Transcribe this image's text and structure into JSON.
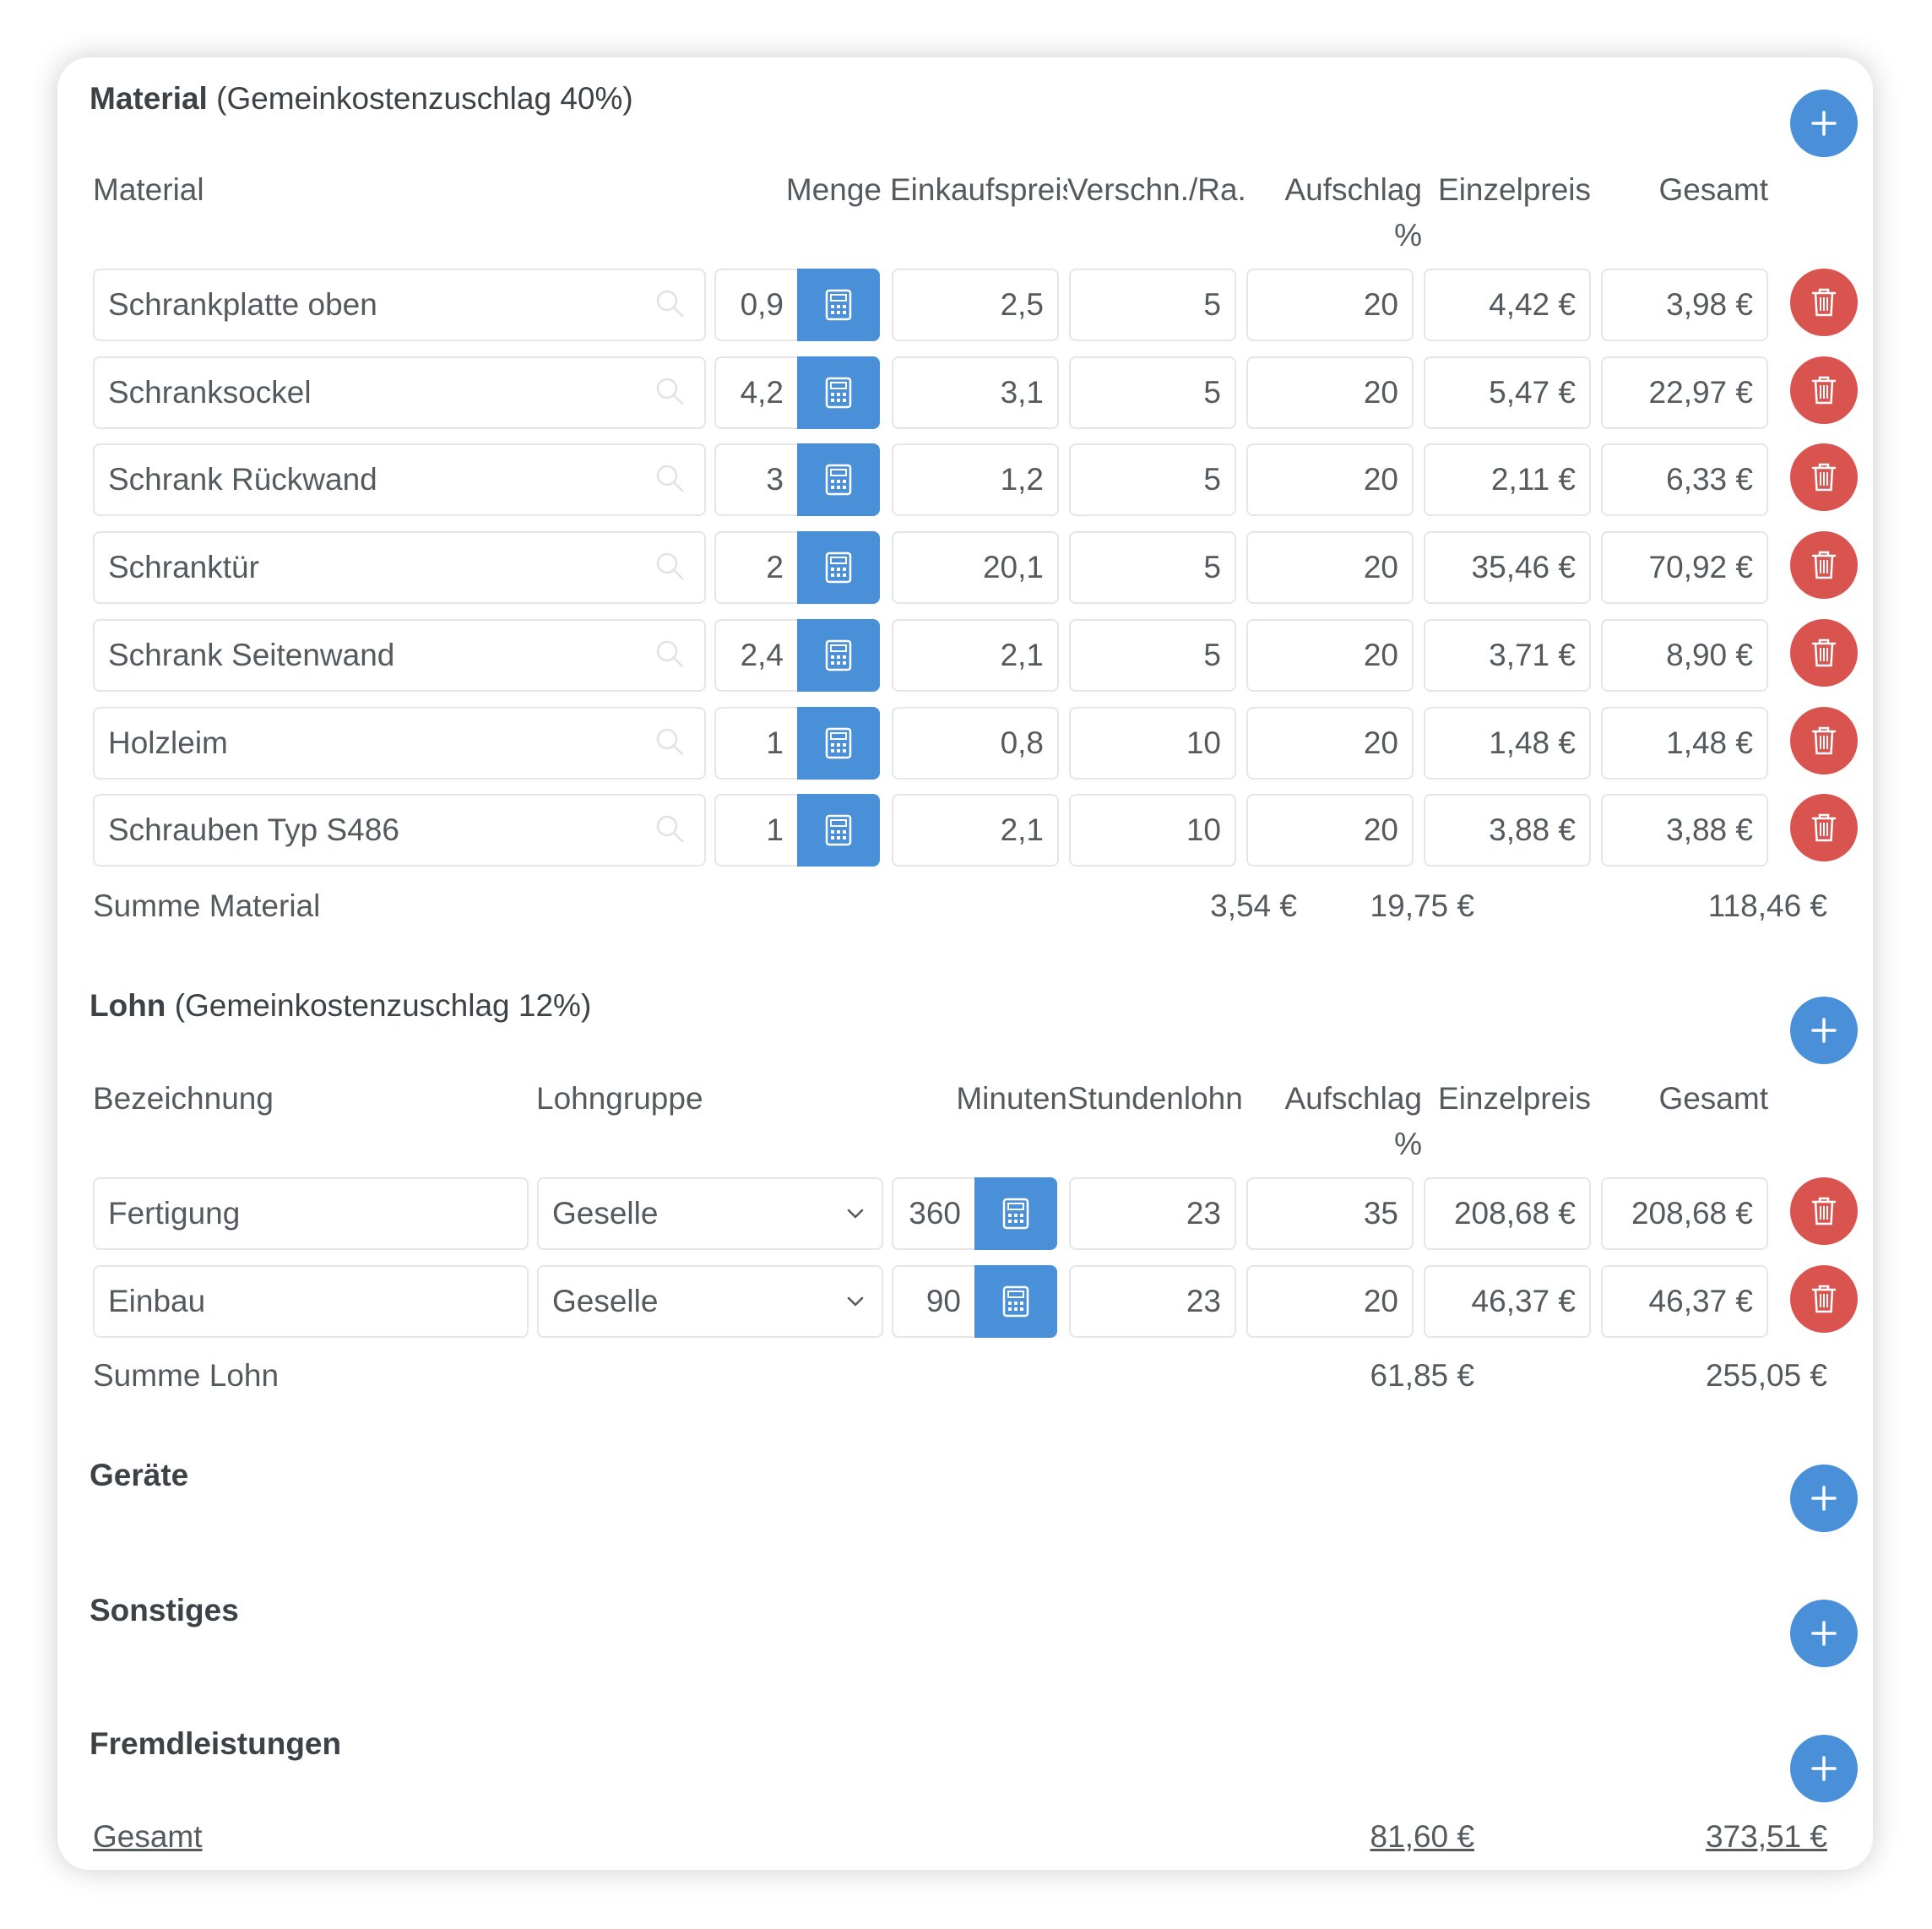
{
  "material": {
    "title": "Material",
    "subtitle": "(Gemeinkostenzuschlag 40%)",
    "headers": {
      "material": "Material",
      "menge": "Menge",
      "einkaufspreis": "Einkaufspreis",
      "verschn": "Verschn./Ra.",
      "aufschlag": "Aufschlag",
      "aufschlag_unit": "%",
      "einzelpreis": "Einzelpreis",
      "gesamt": "Gesamt"
    },
    "rows": [
      {
        "name": "Schrankplatte oben",
        "menge": "0,9",
        "einkaufspreis": "2,5",
        "verschn": "5",
        "aufschlag": "20",
        "einzelpreis": "4,42 €",
        "gesamt": "3,98 €"
      },
      {
        "name": "Schranksockel",
        "menge": "4,2",
        "einkaufspreis": "3,1",
        "verschn": "5",
        "aufschlag": "20",
        "einzelpreis": "5,47 €",
        "gesamt": "22,97 €"
      },
      {
        "name": "Schrank Rückwand",
        "menge": "3",
        "einkaufspreis": "1,2",
        "verschn": "5",
        "aufschlag": "20",
        "einzelpreis": "2,11 €",
        "gesamt": "6,33 €"
      },
      {
        "name": "Schranktür",
        "menge": "2",
        "einkaufspreis": "20,1",
        "verschn": "5",
        "aufschlag": "20",
        "einzelpreis": "35,46 €",
        "gesamt": "70,92 €"
      },
      {
        "name": "Schrank Seitenwand",
        "menge": "2,4",
        "einkaufspreis": "2,1",
        "verschn": "5",
        "aufschlag": "20",
        "einzelpreis": "3,71 €",
        "gesamt": "8,90 €"
      },
      {
        "name": "Holzleim",
        "menge": "1",
        "einkaufspreis": "0,8",
        "verschn": "10",
        "aufschlag": "20",
        "einzelpreis": "1,48 €",
        "gesamt": "1,48 €"
      },
      {
        "name": "Schrauben Typ S486",
        "menge": "1",
        "einkaufspreis": "2,1",
        "verschn": "10",
        "aufschlag": "20",
        "einzelpreis": "3,88 €",
        "gesamt": "3,88 €"
      }
    ],
    "summary": {
      "label": "Summe Material",
      "verschn": "3,54 €",
      "aufschlag": "19,75 €",
      "gesamt": "118,46 €"
    }
  },
  "lohn": {
    "title": "Lohn",
    "subtitle": "(Gemeinkostenzuschlag 12%)",
    "headers": {
      "bezeichnung": "Bezeichnung",
      "lohngruppe": "Lohngruppe",
      "minuten": "Minuten",
      "stundenlohn": "Stundenlohn",
      "aufschlag": "Aufschlag",
      "aufschlag_unit": "%",
      "einzelpreis": "Einzelpreis",
      "gesamt": "Gesamt"
    },
    "rows": [
      {
        "name": "Fertigung",
        "lohngruppe": "Geselle",
        "minuten": "360",
        "stundenlohn": "23",
        "aufschlag": "35",
        "einzelpreis": "208,68 €",
        "gesamt": "208,68 €"
      },
      {
        "name": "Einbau",
        "lohngruppe": "Geselle",
        "minuten": "90",
        "stundenlohn": "23",
        "aufschlag": "20",
        "einzelpreis": "46,37 €",
        "gesamt": "46,37 €"
      }
    ],
    "summary": {
      "label": "Summe Lohn",
      "aufschlag": "61,85 €",
      "gesamt": "255,05 €"
    }
  },
  "geraete": {
    "title": "Geräte"
  },
  "sonstiges": {
    "title": "Sonstiges"
  },
  "fremdleistungen": {
    "title": "Fremdleistungen"
  },
  "total": {
    "label": "Gesamt",
    "aufschlag": "81,60 €",
    "gesamt": "373,51 €"
  },
  "colors": {
    "primary": "#4a90d9",
    "danger": "#d9534f",
    "border": "#e4e6e9",
    "text": "#555a5f"
  },
  "icons": {
    "add": "plus-icon",
    "delete": "trash-icon",
    "calculator": "calculator-icon",
    "search": "search-icon",
    "dropdown": "chevron-down-icon"
  }
}
